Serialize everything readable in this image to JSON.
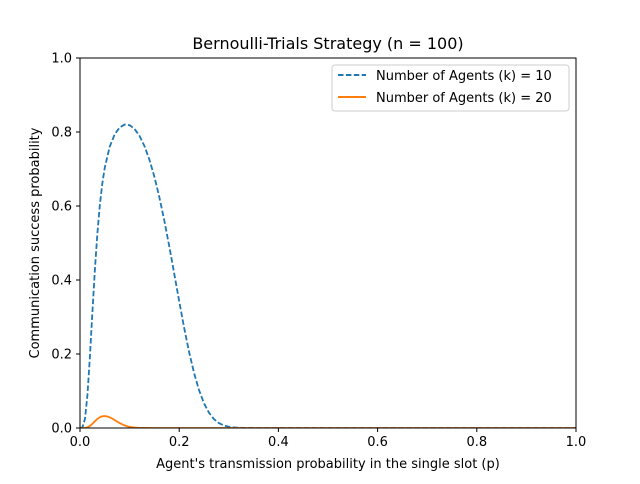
{
  "chart_data": {
    "type": "line",
    "title": "Bernoulli-Trials Strategy (n = 100)",
    "xlabel": "Agent's transmission probability in the single slot (p)",
    "ylabel": "Communication success probability",
    "xlim": [
      0.0,
      1.0
    ],
    "ylim": [
      0.0,
      1.0
    ],
    "xticks": [
      "0.0",
      "0.2",
      "0.4",
      "0.6",
      "0.8",
      "1.0"
    ],
    "yticks": [
      "0.0",
      "0.2",
      "0.4",
      "0.6",
      "0.8",
      "1.0"
    ],
    "grid": false,
    "legend_position": "top-right",
    "series": [
      {
        "name": "Number of Agents (k) = 10",
        "color": "#1f77b4",
        "style": "dashed",
        "x": [
          0,
          0.005,
          0.01,
          0.015,
          0.02,
          0.025,
          0.03,
          0.035,
          0.04,
          0.045,
          0.05,
          0.06,
          0.07,
          0.08,
          0.09,
          0.1,
          0.11,
          0.12,
          0.13,
          0.14,
          0.15,
          0.16,
          0.17,
          0.18,
          0.19,
          0.2,
          0.21,
          0.22,
          0.23,
          0.24,
          0.25,
          0.26,
          0.27,
          0.28,
          0.29,
          0.3,
          0.31,
          0.32,
          0.33,
          0.34,
          0.35,
          0.4,
          0.5,
          0.6,
          0.7,
          0.8,
          0.9,
          1.0
        ],
        "y": [
          0,
          0.0018,
          0.0242,
          0.0894,
          0.1932,
          0.3127,
          0.4273,
          0.5252,
          0.6026,
          0.661,
          0.704,
          0.7607,
          0.7939,
          0.8125,
          0.8201,
          0.8185,
          0.8083,
          0.7896,
          0.7619,
          0.7251,
          0.6789,
          0.6237,
          0.5604,
          0.4907,
          0.417,
          0.3425,
          0.2707,
          0.2051,
          0.1484,
          0.1023,
          0.0669,
          0.0414,
          0.0241,
          0.0132,
          0.0068,
          0.0033,
          0.0015,
          0.0006,
          0.0002,
          0.0001,
          0,
          0,
          0,
          0,
          0,
          0,
          0,
          0
        ]
      },
      {
        "name": "Number of Agents (k) = 20",
        "color": "#ff7f0e",
        "style": "solid",
        "x": [
          0,
          0.005,
          0.01,
          0.015,
          0.02,
          0.025,
          0.03,
          0.035,
          0.04,
          0.045,
          0.05,
          0.055,
          0.06,
          0.065,
          0.07,
          0.075,
          0.08,
          0.085,
          0.09,
          0.095,
          0.1,
          0.11,
          0.12,
          0.13,
          0.15,
          0.2,
          0.3,
          0.5,
          0.7,
          1.0
        ],
        "y": [
          0,
          0,
          0.0003,
          0.0018,
          0.0055,
          0.0114,
          0.0183,
          0.0245,
          0.029,
          0.0316,
          0.0323,
          0.0312,
          0.0288,
          0.0254,
          0.0214,
          0.0172,
          0.0133,
          0.0099,
          0.007,
          0.0048,
          0.0031,
          0.0012,
          0.0004,
          0.0001,
          0,
          0,
          0,
          0,
          0,
          0
        ]
      }
    ]
  }
}
